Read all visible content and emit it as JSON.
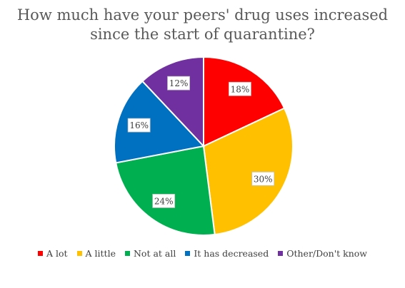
{
  "chart_data": {
    "type": "pie",
    "title_lines": [
      "How much have your peers' drug uses increased",
      "since the start of quarantine?"
    ],
    "categories": [
      "A lot",
      "A little",
      "Not at all",
      "It has decreased",
      "Other/Don't know"
    ],
    "values": [
      18,
      30,
      24,
      16,
      12
    ],
    "data_labels": [
      "18%",
      "30%",
      "24%",
      "16%",
      "12%"
    ],
    "colors": [
      "#ff0000",
      "#ffc000",
      "#00b050",
      "#0070c0",
      "#7030a0"
    ],
    "legend_position": "bottom",
    "start_angle_deg": 0,
    "direction": "clockwise"
  }
}
